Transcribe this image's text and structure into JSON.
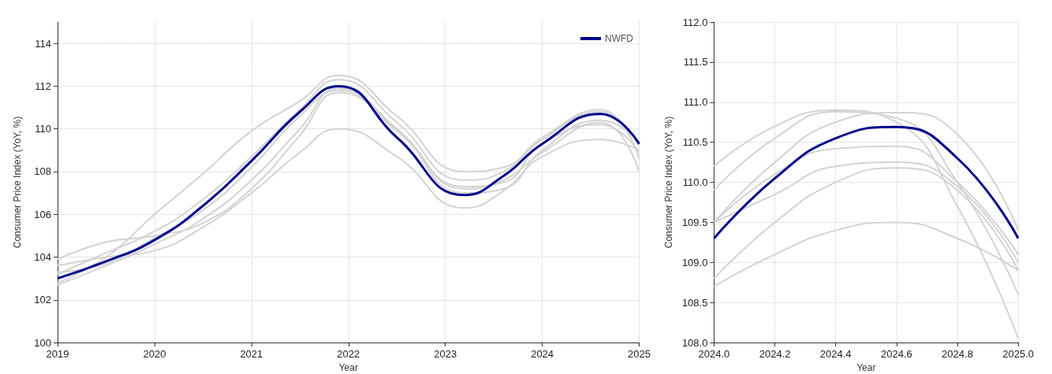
{
  "chart_data": [
    {
      "type": "line",
      "xlabel": "Year",
      "ylabel": "Consumer Price Index (YoY, %)",
      "x": [
        2019,
        2019.5,
        2020,
        2020.5,
        2021,
        2021.5,
        2021.9,
        2022.5,
        2023.2,
        2023.6,
        2024,
        2024.6,
        2025
      ],
      "xlim": [
        2019,
        2025
      ],
      "xticks": [
        2019,
        2020,
        2021,
        2022,
        2023,
        2024,
        2025
      ],
      "ylim": [
        100,
        115
      ],
      "yticks": [
        100,
        102,
        104,
        106,
        108,
        110,
        112,
        114
      ],
      "grid": true,
      "legend": "top right",
      "marker": "none",
      "line_style": "solid",
      "series": [
        {
          "color": "#d3d3d3",
          "values": [
            103.6,
            104.0,
            104.3,
            105.4,
            107.0,
            108.9,
            110.0,
            108.7,
            106.3,
            107.1,
            108.7,
            109.5,
            109.0
          ]
        },
        {
          "color": "#d3d3d3",
          "values": [
            103.9,
            104.7,
            105.0,
            105.6,
            107.2,
            109.7,
            111.7,
            110.0,
            107.2,
            107.6,
            108.9,
            110.3,
            108.0
          ]
        },
        {
          "color": "#d3d3d3",
          "values": [
            102.8,
            104.0,
            106.0,
            107.9,
            109.9,
            111.3,
            112.5,
            110.6,
            108.0,
            108.2,
            109.6,
            110.9,
            108.6
          ]
        },
        {
          "color": "#d3d3d3",
          "values": [
            103.2,
            104.2,
            105.2,
            106.7,
            108.7,
            110.9,
            112.3,
            110.3,
            107.6,
            108.0,
            109.5,
            110.8,
            109.2
          ]
        },
        {
          "color": "#d3d3d3",
          "values": [
            103.3,
            103.7,
            104.9,
            106.2,
            108.2,
            110.6,
            111.8,
            109.9,
            107.3,
            107.5,
            109.3,
            110.2,
            108.9
          ]
        },
        {
          "color": "#d3d3d3",
          "values": [
            102.7,
            103.6,
            104.6,
            105.8,
            107.6,
            110.0,
            111.9,
            110.0,
            107.0,
            107.2,
            109.0,
            110.4,
            109.4
          ]
        },
        {
          "name": "NWFD",
          "color": "#00008b",
          "values": [
            103.0,
            103.8,
            104.8,
            106.4,
            108.5,
            110.8,
            112.0,
            109.6,
            106.9,
            107.8,
            109.3,
            110.7,
            109.3
          ]
        }
      ]
    },
    {
      "type": "line",
      "xlabel": "Year",
      "ylabel": "Consumer Price Index (YoY, %)",
      "x": [
        2024.0,
        2024.2,
        2024.4,
        2024.6,
        2024.8,
        2025.0
      ],
      "xlim": [
        2024,
        2025
      ],
      "xticks": [
        {
          "value": 2024,
          "label": "2024.0"
        },
        2024.2,
        2024.4,
        2024.6,
        2024.8,
        {
          "value": 2025,
          "label": "2025.0"
        }
      ],
      "ylim": [
        108,
        112
      ],
      "yticks": [
        {
          "value": 108,
          "label": "108.0"
        },
        108.5,
        {
          "value": 109,
          "label": "109.0"
        },
        109.5,
        {
          "value": 110,
          "label": "110.0"
        },
        110.5,
        {
          "value": 111,
          "label": "111.0"
        },
        111.5,
        {
          "value": 112,
          "label": "112.0"
        }
      ],
      "grid": true,
      "marker": "none",
      "line_style": "solid",
      "series": [
        {
          "color": "#d3d3d3",
          "values": [
            110.2,
            110.7,
            110.9,
            110.75,
            109.7,
            108.05
          ]
        },
        {
          "color": "#d3d3d3",
          "values": [
            109.9,
            110.55,
            110.88,
            110.8,
            110.0,
            108.6
          ]
        },
        {
          "color": "#d3d3d3",
          "values": [
            109.5,
            110.25,
            110.75,
            110.87,
            110.6,
            109.4
          ]
        },
        {
          "color": "#d3d3d3",
          "values": [
            109.5,
            110.1,
            110.42,
            110.45,
            110.0,
            109.1
          ]
        },
        {
          "color": "#d3d3d3",
          "values": [
            109.5,
            109.85,
            110.2,
            110.25,
            109.95,
            109.0
          ]
        },
        {
          "color": "#d3d3d3",
          "values": [
            108.8,
            109.5,
            110.0,
            110.18,
            109.9,
            108.9
          ]
        },
        {
          "color": "#d3d3d3",
          "values": [
            108.7,
            109.1,
            109.4,
            109.5,
            109.3,
            108.9
          ]
        },
        {
          "color": "#00008b",
          "values": [
            109.3,
            110.05,
            110.55,
            110.69,
            110.3,
            109.3
          ]
        }
      ]
    }
  ]
}
